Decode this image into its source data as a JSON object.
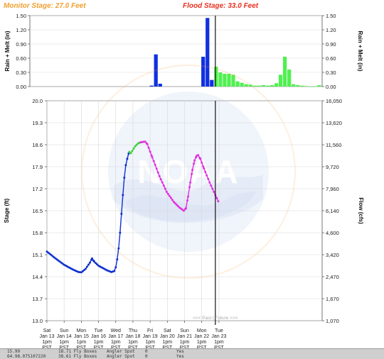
{
  "header": {
    "monitor_stage": "Monitor Stage: 27.0 Feet",
    "flood_stage": "Flood Stage: 33.0 Feet",
    "monitor_color": "#f0a030",
    "flood_color": "#e83020"
  },
  "past_future_label": "<<< Past | Future >>>",
  "colors": {
    "observed": "#1030d0",
    "forecast_transition": "#40d040",
    "forecast": "#e030e0",
    "precip_observed": "#1030e0",
    "precip_forecast": "#50f050"
  },
  "watermark": "NOAA",
  "chart_data": [
    {
      "type": "bar",
      "ylabel_left": "Rain + Melt (in)",
      "ylabel_right": "Rain + Melt (in)",
      "ylim": [
        0,
        1.5
      ],
      "y_ticks": [
        "0.00",
        "0.30",
        "0.60",
        "0.90",
        "1.20",
        "1.50"
      ],
      "series": [
        {
          "name": "observed",
          "hours": [
            162,
            168,
            174,
            234,
            240,
            246
          ],
          "values": [
            0.02,
            0.68,
            0.06,
            0.63,
            1.45,
            0.14
          ]
        },
        {
          "name": "forecast",
          "hours": [
            252,
            258,
            264,
            270,
            276,
            282,
            288,
            294,
            300,
            306,
            312,
            318,
            324,
            330,
            336,
            342,
            348,
            354,
            360,
            366,
            372,
            378,
            384,
            390,
            396
          ],
          "values": [
            0.42,
            0.3,
            0.27,
            0.27,
            0.25,
            0.11,
            0.08,
            0.05,
            0.04,
            0.02,
            0.02,
            0.03,
            0.02,
            0.03,
            0.07,
            0.25,
            0.63,
            0.36,
            0.05,
            0.03,
            0.02,
            0.01,
            0.0,
            0.0,
            0.03
          ]
        }
      ]
    },
    {
      "type": "line",
      "ylabel_left": "Stage (ft)",
      "ylabel_right": "Flow (cfs)",
      "ylim": [
        13.0,
        20.0
      ],
      "y_ticks": [
        "13.0",
        "13.7",
        "14.4",
        "15.1",
        "15.8",
        "16.5",
        "17.2",
        "17.9",
        "18.6",
        "19.3",
        "20.0"
      ],
      "flow_ticks": [
        "1,070",
        "1,670",
        "2,470",
        "3,420",
        "4,600",
        "6,140",
        "7,960",
        "9,720",
        "11,560",
        "13,620",
        "16,050"
      ],
      "x_unit": "hours since Jan 13 midnight PST",
      "xlim": [
        13,
        397
      ],
      "now_hour": 248,
      "x_ticks": [
        {
          "hour": 13,
          "day": "Sat",
          "date": "Jan 13",
          "time": "1pm",
          "tz": "PST"
        },
        {
          "hour": 37,
          "day": "Sun",
          "date": "Jan 14",
          "time": "1pm",
          "tz": "PST"
        },
        {
          "hour": 61,
          "day": "Mon",
          "date": "Jan 15",
          "time": "1pm",
          "tz": "PST"
        },
        {
          "hour": 85,
          "day": "Tue",
          "date": "Jan 16",
          "time": "1pm",
          "tz": "PST"
        },
        {
          "hour": 109,
          "day": "Wed",
          "date": "Jan 17",
          "time": "1pm",
          "tz": "PST"
        },
        {
          "hour": 133,
          "day": "Thu",
          "date": "Jan 18",
          "time": "1pm",
          "tz": "PST"
        },
        {
          "hour": 157,
          "day": "Fri",
          "date": "Jan 19",
          "time": "1pm",
          "tz": "PST"
        },
        {
          "hour": 181,
          "day": "Sat",
          "date": "Jan 20",
          "time": "1pm",
          "tz": "PST"
        },
        {
          "hour": 205,
          "day": "Sun",
          "date": "Jan 21",
          "time": "1pm",
          "tz": "PST"
        },
        {
          "hour": 229,
          "day": "Mon",
          "date": "Jan 22",
          "time": "1pm",
          "tz": "PST"
        },
        {
          "hour": 253,
          "day": "Tue",
          "date": "Jan 23",
          "time": "1pm",
          "tz": "PST"
        }
      ],
      "series": [
        {
          "name": "observed",
          "points": [
            [
              13,
              15.2
            ],
            [
              25,
              14.98
            ],
            [
              37,
              14.78
            ],
            [
              49,
              14.63
            ],
            [
              57,
              14.55
            ],
            [
              61,
              14.54
            ],
            [
              67,
              14.65
            ],
            [
              73,
              14.85
            ],
            [
              76,
              14.98
            ],
            [
              79,
              14.88
            ],
            [
              85,
              14.75
            ],
            [
              97,
              14.6
            ],
            [
              103,
              14.55
            ],
            [
              107,
              14.58
            ],
            [
              109,
              14.7
            ],
            [
              111,
              14.95
            ],
            [
              113,
              15.3
            ],
            [
              115,
              15.8
            ],
            [
              117,
              16.4
            ],
            [
              119,
              17.0
            ],
            [
              121,
              17.55
            ],
            [
              123,
              17.95
            ],
            [
              125,
              18.15
            ],
            [
              127,
              18.32
            ],
            [
              128,
              18.37
            ]
          ],
          "marker_step": 2
        },
        {
          "name": "forecast_transition",
          "points": [
            [
              128,
              18.37
            ],
            [
              130,
              18.33
            ],
            [
              132,
              18.4
            ],
            [
              136,
              18.55
            ],
            [
              140,
              18.64
            ],
            [
              144,
              18.68
            ]
          ]
        },
        {
          "name": "forecast",
          "points": [
            [
              144,
              18.68
            ],
            [
              150,
              18.7
            ],
            [
              153,
              18.62
            ],
            [
              160,
              18.2
            ],
            [
              170,
              17.6
            ],
            [
              180,
              17.1
            ],
            [
              190,
              16.78
            ],
            [
              198,
              16.6
            ],
            [
              204,
              16.5
            ],
            [
              207,
              16.58
            ],
            [
              210,
              16.95
            ],
            [
              213,
              17.4
            ],
            [
              216,
              17.8
            ],
            [
              219,
              18.1
            ],
            [
              222,
              18.25
            ],
            [
              224,
              18.27
            ],
            [
              227,
              18.15
            ],
            [
              232,
              17.85
            ],
            [
              240,
              17.4
            ],
            [
              248,
              17.0
            ],
            [
              252,
              16.8
            ]
          ]
        }
      ]
    }
  ],
  "bottom_strip": {
    "row1": [
      "15.99",
      "18.71 Fly Boxes",
      "Angler Spot",
      "0",
      "Yes"
    ],
    "row2": [
      "64.98.075107220",
      "38.61 Fly Boxes",
      "Angler Spot",
      "0",
      "Yes"
    ]
  }
}
